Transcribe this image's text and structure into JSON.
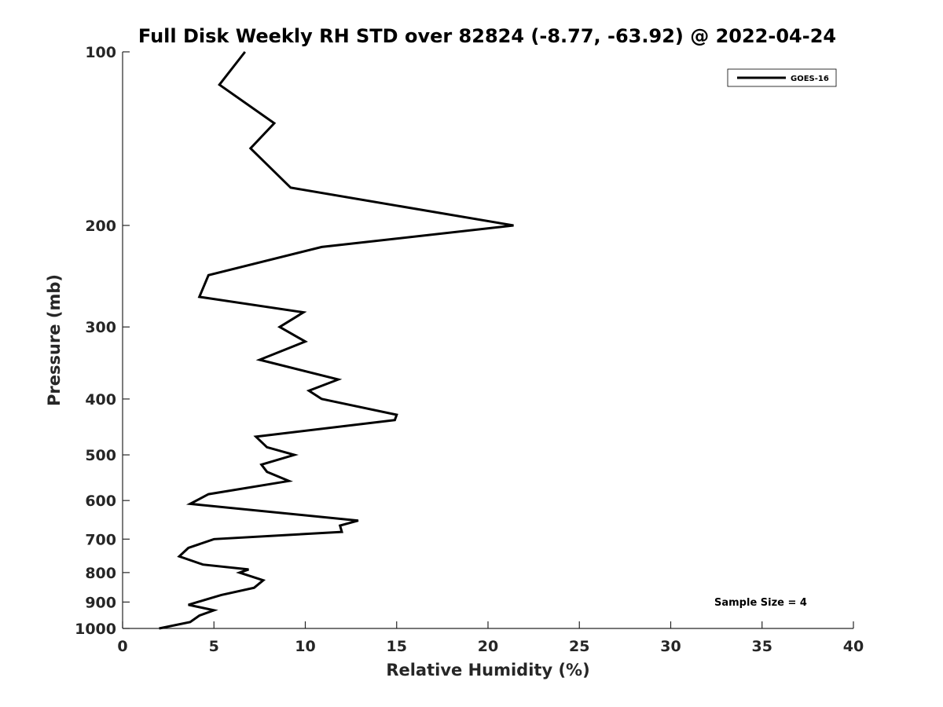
{
  "chart_data": {
    "type": "line",
    "title": "Full Disk Weekly RH STD over 82824 (-8.77, -63.92) @ 2022-04-24",
    "xlabel": "Relative Humidity (%)",
    "ylabel": "Pressure (mb)",
    "xlim": [
      0,
      40
    ],
    "ylim": [
      100,
      1000
    ],
    "y_scale": "log",
    "y_reversed": true,
    "x_ticks": [
      0,
      5,
      10,
      15,
      20,
      25,
      30,
      35,
      40
    ],
    "y_ticks": [
      100,
      200,
      300,
      400,
      500,
      600,
      700,
      800,
      900,
      1000
    ],
    "grid": false,
    "legend": {
      "position": "top-right",
      "entries": [
        "GOES-16"
      ]
    },
    "annotation": "Sample Size = 4",
    "series": [
      {
        "name": "GOES-16",
        "color": "#000000",
        "x": [
          6.7,
          5.3,
          8.3,
          7.0,
          9.2,
          21.4,
          10.9,
          4.7,
          4.2,
          9.9,
          8.6,
          10.0,
          7.5,
          11.8,
          10.2,
          10.9,
          15.0,
          14.9,
          7.3,
          7.9,
          9.4,
          7.6,
          7.9,
          9.1,
          4.7,
          3.7,
          12.9,
          11.9,
          12.0,
          5.0,
          3.6,
          3.1,
          4.4,
          6.9,
          6.4,
          7.7,
          7.2,
          5.4,
          3.6,
          5.0,
          4.2,
          3.7,
          2.0
        ],
        "y": [
          100,
          114,
          133,
          147,
          172,
          200,
          218,
          244,
          266,
          283,
          300,
          318,
          342,
          370,
          387,
          400,
          426,
          435,
          465,
          485,
          500,
          520,
          535,
          555,
          585,
          608,
          650,
          663,
          680,
          700,
          725,
          750,
          775,
          790,
          800,
          825,
          850,
          875,
          910,
          930,
          950,
          975,
          1000
        ]
      }
    ]
  }
}
